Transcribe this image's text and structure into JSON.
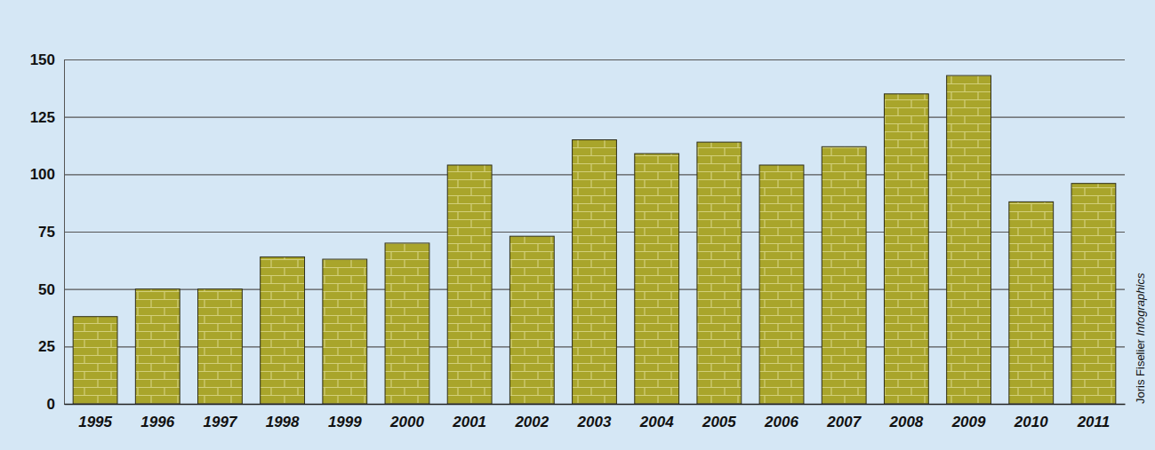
{
  "chart_data": {
    "type": "bar",
    "categories": [
      "1995",
      "1996",
      "1997",
      "1998",
      "1999",
      "2000",
      "2001",
      "2002",
      "2003",
      "2004",
      "2005",
      "2006",
      "2007",
      "2008",
      "2009",
      "2010",
      "2011"
    ],
    "values": [
      38,
      50,
      50,
      64,
      63,
      70,
      104,
      73,
      115,
      109,
      114,
      104,
      112,
      135,
      143,
      88,
      96
    ],
    "color": "#a9a52b",
    "ylim": [
      0,
      150
    ],
    "yticks": [
      0,
      25,
      50,
      75,
      100,
      125,
      150
    ],
    "grid": true,
    "annotations": [
      "Joris Fiselier",
      "Infographics"
    ]
  }
}
